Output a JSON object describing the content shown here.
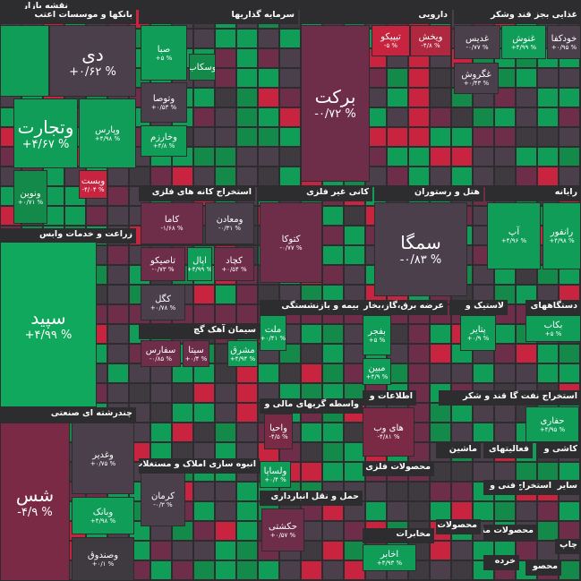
{
  "title": "نقشه بازار",
  "sectors": [
    {
      "title": "بانکها و موسسات اعتب",
      "tiles": [
        {
          "name": "دی",
          "change": "+۰/۶۲ %",
          "color": "#4a3f4a"
        },
        {
          "name": "",
          "change": "",
          "color": "#0f9d58"
        },
        {
          "name": "وپارس",
          "change": "+۴/۹۸ %",
          "color": "#0f9d58"
        },
        {
          "name": "وتجارت",
          "change": "+۴/۶۷ %",
          "color": "#0f9d58"
        },
        {
          "name": "وبست",
          "change": "-۴/۰۴ %",
          "color": "#c8243f"
        },
        {
          "name": "ونوین",
          "change": "+۰/۷۱ %",
          "color": "#138a4a"
        }
      ]
    },
    {
      "title": "زراعت و خدمات وابس",
      "tiles": [
        {
          "name": "سپید",
          "change": "+۴/۹۹ %",
          "color": "#0fa85c"
        }
      ]
    },
    {
      "title": "چندرشته ای صنعتی",
      "tiles": [
        {
          "name": "شس",
          "change": "-۴/۹ %",
          "color": "#7a2a45"
        },
        {
          "name": "وغدیر",
          "change": "+۰/۷۵ %",
          "color": "#4a3f4a"
        },
        {
          "name": "وبانک",
          "change": "+۴/۹۸ %",
          "color": "#0f9d58"
        },
        {
          "name": "وصندوق",
          "change": "+۰/۱ %",
          "color": "#3e3a40"
        }
      ]
    },
    {
      "title": "سرمایه گذاریها",
      "tiles": [
        {
          "name": "صبا",
          "change": "+۵ %",
          "color": "#0f9d58"
        },
        {
          "name": "وسکاب",
          "change": "",
          "color": "#138a4a"
        },
        {
          "name": "وتوصا",
          "change": "+۰/۵۳ %",
          "color": "#4a3f4a"
        },
        {
          "name": "وخارزم",
          "change": "+۴/۸ %",
          "color": "#0f9d58"
        }
      ]
    },
    {
      "title": "دارویی",
      "tiles": [
        {
          "name": "برکت",
          "change": "-۰/۷۲ %",
          "color": "#6e2d48"
        },
        {
          "name": "تیپیکو",
          "change": "-۵ %",
          "color": "#c8243f"
        },
        {
          "name": "ویخش",
          "change": "-۴/۸ %",
          "color": "#b0283f"
        }
      ]
    },
    {
      "title": "غذایی بجز قند وشکر",
      "tiles": [
        {
          "name": "غدیس",
          "change": "-۰/۷۷ %",
          "color": "#4a3f4a"
        },
        {
          "name": "غنوش",
          "change": "+۴/۹۹ %",
          "color": "#0f9d58"
        },
        {
          "name": "خودکفا",
          "change": "+۰/۹۵ %",
          "color": "#4a3f4a"
        },
        {
          "name": "غگروش",
          "change": "+۰/۴۳ %",
          "color": "#4a3f4a"
        }
      ]
    },
    {
      "title": "استخراج کانه های فلزی",
      "tiles": [
        {
          "name": "کاما",
          "change": "-۱/۶۸ %",
          "color": "#6e2d48"
        },
        {
          "name": "ومعادن",
          "change": "-۰/۳۱ %",
          "color": "#4a3f4a"
        },
        {
          "name": "تاصیکو",
          "change": "-۰/۷۳ %",
          "color": "#6e2d48"
        },
        {
          "name": "اپال",
          "change": "+۴/۹۹ %",
          "color": "#0f9d58"
        },
        {
          "name": "کچاد",
          "change": "+۰/۵۴ %",
          "color": "#6e2d48"
        },
        {
          "name": "کگل",
          "change": "+۰/۷۸ %",
          "color": "#4a3f4a"
        }
      ]
    },
    {
      "title": "کانی غیر فلزی",
      "tiles": [
        {
          "name": "کتوکا",
          "change": "-۰/۷۷ %",
          "color": "#6e2d48"
        }
      ]
    },
    {
      "title": "هتل و رستوران",
      "tiles": [
        {
          "name": "سمگا",
          "change": "-۰/۸۳ %",
          "color": "#4a3f4a"
        }
      ]
    },
    {
      "title": "رایانه",
      "tiles": [
        {
          "name": "آپ",
          "change": "+۴/۹۶ %",
          "color": "#0f9d58"
        },
        {
          "name": "رانفور",
          "change": "+۴/۹۸ %",
          "color": "#0f9d58"
        }
      ]
    },
    {
      "title": "سیمان آهک گچ",
      "tiles": [
        {
          "name": "سفارس",
          "change": "-۰/۸۵ %",
          "color": "#6e2d48"
        },
        {
          "name": "سیتا",
          "change": "+۰/۴ %",
          "color": "#6e2d48"
        },
        {
          "name": "مشرق",
          "change": "+۴/۹۴ %",
          "color": "#0f9d58"
        }
      ]
    },
    {
      "title": "بیمه و بازنشستگی",
      "tiles": [
        {
          "name": "ملت",
          "change": "+۰/۴۱ %",
          "color": "#0f9d58"
        }
      ]
    },
    {
      "title": "عرضه برق،گاز،بخار و",
      "tiles": [
        {
          "name": "بفجر",
          "change": "+۵ %",
          "color": "#0f9d58"
        },
        {
          "name": "مبین",
          "change": "+۴/۹ %",
          "color": "#0f9d58"
        }
      ]
    },
    {
      "title": "لاستیک و",
      "tiles": [
        {
          "name": "پتایر",
          "change": "+۰/۹ %",
          "color": "#0f9d58"
        }
      ]
    },
    {
      "title": "دستگاههای",
      "tiles": [
        {
          "name": "بکاب",
          "change": "+۵ %",
          "color": "#0f9d58"
        }
      ]
    },
    {
      "title": "اطلاعات و",
      "tiles": [
        {
          "name": "های وب",
          "change": "-۴/۸۱ %",
          "color": "#7a2a45"
        }
      ]
    },
    {
      "title": "قند و شکر",
      "tiles": []
    },
    {
      "title": "استخراج نفت گاز",
      "tiles": [
        {
          "name": "حفاری",
          "change": "+۴/۹۵ %",
          "color": "#0f9d58"
        }
      ]
    },
    {
      "title": "واسطه گریهای مالی و",
      "tiles": [
        {
          "name": "واحیا",
          "change": "-۴/۵ %",
          "color": "#7a2a45"
        },
        {
          "name": "ولساپا",
          "change": "+۰/۴ %",
          "color": "#0f9d58"
        }
      ]
    },
    {
      "title": "انبوه سازی املاک و مستغلات",
      "tiles": [
        {
          "name": "کرمان",
          "change": "-۰/۳ %",
          "color": "#4a3f4a"
        }
      ]
    },
    {
      "title": "حمل و نقل انبارداری",
      "tiles": [
        {
          "name": "حکشتی",
          "change": "+۰/۵۷ %",
          "color": "#6e2d48"
        }
      ]
    },
    {
      "title": "محصولات فلزی",
      "tiles": []
    },
    {
      "title": "ماشین",
      "tiles": []
    },
    {
      "title": "فعالیتهای",
      "tiles": []
    },
    {
      "title": "کاشی و",
      "tiles": []
    },
    {
      "title": "مخابرات",
      "tiles": [
        {
          "name": "اخابر",
          "change": "+۴/۹۳ %",
          "color": "#0f9d58"
        }
      ]
    },
    {
      "title": "محصولات",
      "tiles": []
    },
    {
      "title": "فنی و",
      "tiles": []
    },
    {
      "title": "استخراج",
      "tiles": []
    },
    {
      "title": "سایر",
      "tiles": []
    },
    {
      "title": "محصولات منسوجات",
      "tiles": []
    },
    {
      "title": "چاپ",
      "tiles": []
    },
    {
      "title": "خرده",
      "tiles": []
    },
    {
      "title": "محصو",
      "tiles": []
    }
  ]
}
